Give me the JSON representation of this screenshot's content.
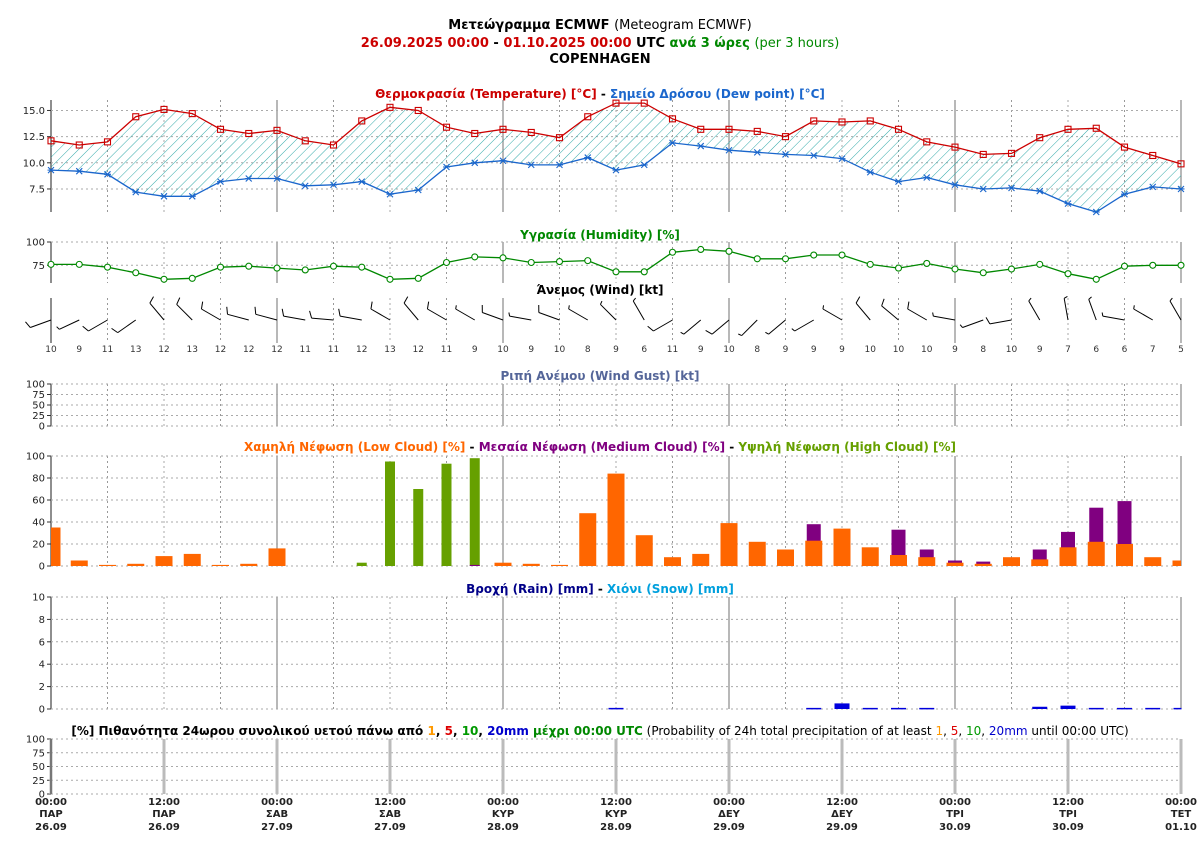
{
  "header": {
    "title": "Μετεώγραμμα ECMWF",
    "title_en": "(Meteogram ECMWF)",
    "period_start": "26.09.2025 00:00",
    "period_sep": " - ",
    "period_end": "01.10.2025 00:00",
    "period_utc": " UTC ",
    "interval": "ανά 3 ώρες",
    "interval_en": "(per 3 hours)",
    "location": "COPENHAGEN"
  },
  "titles": {
    "temp": "Θερμοκρασία (Temperature) [°C]",
    "dew": "Σημείο Δρόσου (Dew point) [°C]",
    "dash": " - ",
    "humidity": "Υγρασία (Humidity) [%]",
    "wind": "Άνεμος (Wind) [kt]",
    "gust": "Ριπή Ανέμου (Wind Gust) [kt]",
    "low_cloud": "Χαμηλή Νέφωση (Low Cloud) [%]",
    "med_cloud": "Μεσαία Νέφωση (Medium Cloud) [%]",
    "high_cloud": "Υψηλή Νέφωση (High Cloud) [%]",
    "rain": "Βροχή (Rain) [mm]",
    "snow": "Χιόνι (Snow) [mm]",
    "prob_a": "[%] Πιθανότητα 24ωρου συνολικού υετού πάνω από ",
    "t1": "1",
    "c1": ", ",
    "t5": "5",
    "c2": ", ",
    "t10": "10",
    "c3": ", ",
    "t20": "20mm",
    "prob_b": " μέχρι 00:00 UTC",
    "prob_c": " (Probability of 24h total precipitation of at least ",
    "s1": "1",
    "s2": ", ",
    "s5": "5",
    "s3": ", ",
    "s10": "10",
    "s4": ", ",
    "s20": "20mm",
    "prob_d": " until 00:00 UTC)"
  },
  "colors": {
    "temp": "#cc0000",
    "dew": "#1a66cc",
    "hatch": "#33aaaa",
    "humidity": "#008800",
    "low": "#ff6600",
    "medium": "#800080",
    "high": "#66a000",
    "rain": "#0000dd",
    "snow": "#00a0dd",
    "gust_title": "#556699",
    "green_text": "#008800",
    "p1": "#ff9900",
    "p5": "#dd0000",
    "p10": "#009900",
    "p20": "#0000cc"
  },
  "xaxis": {
    "ticks": [
      {
        "time": "00:00",
        "day": "ΠΑΡ",
        "date": "26.09"
      },
      {
        "time": "12:00",
        "day": "ΠΑΡ",
        "date": "26.09"
      },
      {
        "time": "00:00",
        "day": "ΣΑΒ",
        "date": "27.09"
      },
      {
        "time": "12:00",
        "day": "ΣΑΒ",
        "date": "27.09"
      },
      {
        "time": "00:00",
        "day": "ΚΥΡ",
        "date": "28.09"
      },
      {
        "time": "12:00",
        "day": "ΚΥΡ",
        "date": "28.09"
      },
      {
        "time": "00:00",
        "day": "ΔΕΥ",
        "date": "29.09"
      },
      {
        "time": "12:00",
        "day": "ΔΕΥ",
        "date": "29.09"
      },
      {
        "time": "00:00",
        "day": "ΤΡΙ",
        "date": "30.09"
      },
      {
        "time": "12:00",
        "day": "ΤΡΙ",
        "date": "30.09"
      },
      {
        "time": "00:00",
        "day": "ΤΕΤ",
        "date": "01.10"
      }
    ]
  },
  "chart_data": [
    {
      "type": "line",
      "name": "temperature",
      "series": [
        {
          "name": "Θερμοκρασία (Temperature) [°C]",
          "values": [
            12.1,
            11.7,
            12.0,
            14.4,
            15.1,
            14.7,
            13.2,
            12.8,
            13.1,
            12.1,
            11.7,
            14.0,
            15.3,
            15.0,
            13.4,
            12.8,
            13.2,
            12.9,
            12.4,
            14.4,
            15.7,
            15.7,
            14.2,
            13.2,
            13.2,
            13.0,
            12.5,
            14.0,
            13.9,
            14.0,
            13.2,
            12.0,
            11.5,
            10.8,
            10.9,
            12.4,
            13.2,
            13.3,
            11.5,
            10.7,
            9.9
          ]
        },
        {
          "name": "Σημείο Δρόσου (Dew point) [°C]",
          "values": [
            9.3,
            9.2,
            8.9,
            7.2,
            6.8,
            6.8,
            8.2,
            8.5,
            8.5,
            7.8,
            7.9,
            8.2,
            7.0,
            7.4,
            9.6,
            10.0,
            10.2,
            9.8,
            9.8,
            10.5,
            9.3,
            9.8,
            11.9,
            11.6,
            11.2,
            11.0,
            10.8,
            10.7,
            10.4,
            9.1,
            8.2,
            8.6,
            7.9,
            7.5,
            7.6,
            7.3,
            6.1,
            5.3,
            7.0,
            7.7,
            7.5
          ]
        }
      ],
      "yticks": [
        "7.5",
        "10.0",
        "12.5",
        "15.0"
      ],
      "ylim": [
        5.3,
        16.0
      ]
    },
    {
      "type": "line",
      "name": "humidity",
      "series": [
        {
          "name": "Υγρασία (Humidity) [%]",
          "values": [
            76,
            76,
            73,
            67,
            60,
            61,
            73,
            74,
            72,
            70,
            74,
            73,
            60,
            61,
            78,
            84,
            83,
            78,
            79,
            80,
            68,
            68,
            89,
            92,
            90,
            82,
            82,
            86,
            86,
            76,
            72,
            77,
            71,
            67,
            71,
            76,
            66,
            60,
            74,
            75,
            75
          ]
        }
      ],
      "yticks": [
        "75",
        "100"
      ],
      "ylim": [
        56,
        100
      ]
    },
    {
      "type": "wind",
      "name": "wind",
      "speed_kt": [
        10,
        9,
        11,
        13,
        12,
        13,
        12,
        12,
        12,
        11,
        11,
        12,
        13,
        12,
        11,
        9,
        10,
        9,
        10,
        8,
        9,
        6,
        11,
        9,
        10,
        8,
        9,
        9,
        9,
        10,
        10,
        10,
        9,
        8,
        10,
        9,
        7,
        6,
        6,
        7,
        5
      ],
      "dir_deg": [
        250,
        245,
        240,
        235,
        320,
        315,
        300,
        285,
        285,
        280,
        275,
        280,
        300,
        320,
        300,
        300,
        290,
        280,
        290,
        300,
        315,
        330,
        240,
        230,
        230,
        225,
        230,
        240,
        300,
        320,
        310,
        300,
        280,
        250,
        260,
        330,
        350,
        340,
        280,
        300,
        330
      ]
    },
    {
      "type": "bar",
      "name": "wind_gust",
      "values": [],
      "yticks": [
        "0",
        "25",
        "50",
        "75",
        "100"
      ],
      "ylim": [
        0,
        100
      ]
    },
    {
      "type": "bar",
      "name": "cloud",
      "series": [
        {
          "name": "Χαμηλή Νέφωση (Low Cloud) [%]",
          "values": [
            35,
            5,
            1,
            2,
            9,
            11,
            1,
            2,
            16,
            0,
            0,
            0,
            0,
            0,
            0,
            0,
            3,
            2,
            1,
            48,
            84,
            28,
            8,
            11,
            39,
            22,
            15,
            23,
            34,
            17,
            10,
            8,
            3,
            2,
            8,
            6,
            17,
            22,
            20,
            8,
            5
          ]
        },
        {
          "name": "Μεσαία Νέφωση (Medium Cloud) [%]",
          "values": [
            0,
            0,
            0,
            0,
            0,
            0,
            0,
            0,
            0,
            0,
            0,
            0,
            0,
            0,
            0,
            1,
            0,
            0,
            0,
            0,
            0,
            0,
            0,
            0,
            0,
            0,
            0,
            38,
            0,
            0,
            33,
            15,
            5,
            4,
            0,
            15,
            31,
            53,
            59,
            0,
            0
          ]
        },
        {
          "name": "Υψηλή Νέφωση (High Cloud) [%]",
          "values": [
            0,
            0,
            0,
            0,
            0,
            0,
            0,
            0,
            0,
            0,
            0,
            3,
            95,
            70,
            93,
            98,
            0,
            0,
            0,
            0,
            0,
            0,
            0,
            0,
            0,
            0,
            0,
            0,
            0,
            0,
            0,
            0,
            0,
            0,
            0,
            0,
            0,
            0,
            0,
            0,
            0
          ]
        }
      ],
      "yticks": [
        "0",
        "20",
        "40",
        "60",
        "80",
        "100"
      ],
      "ylim": [
        0,
        100
      ]
    },
    {
      "type": "bar",
      "name": "precipitation",
      "series": [
        {
          "name": "Βροχή (Rain) [mm]",
          "values": [
            0,
            0,
            0,
            0,
            0,
            0,
            0,
            0,
            0,
            0,
            0,
            0,
            0,
            0,
            0,
            0,
            0,
            0,
            0,
            0,
            0.1,
            0,
            0,
            0,
            0,
            0,
            0,
            0.1,
            0.5,
            0.1,
            0.1,
            0.1,
            0,
            0,
            0,
            0.2,
            0.3,
            0.1,
            0.1,
            0.1,
            0.1
          ]
        },
        {
          "name": "Χιόνι (Snow) [mm]",
          "values": []
        }
      ],
      "yticks": [
        "0",
        "2",
        "4",
        "6",
        "8",
        "10"
      ],
      "ylim": [
        0,
        10
      ]
    },
    {
      "type": "bar",
      "name": "precip_probability",
      "values": [],
      "yticks": [
        "0",
        "25",
        "50",
        "75",
        "100"
      ],
      "ylim": [
        0,
        100
      ]
    }
  ]
}
